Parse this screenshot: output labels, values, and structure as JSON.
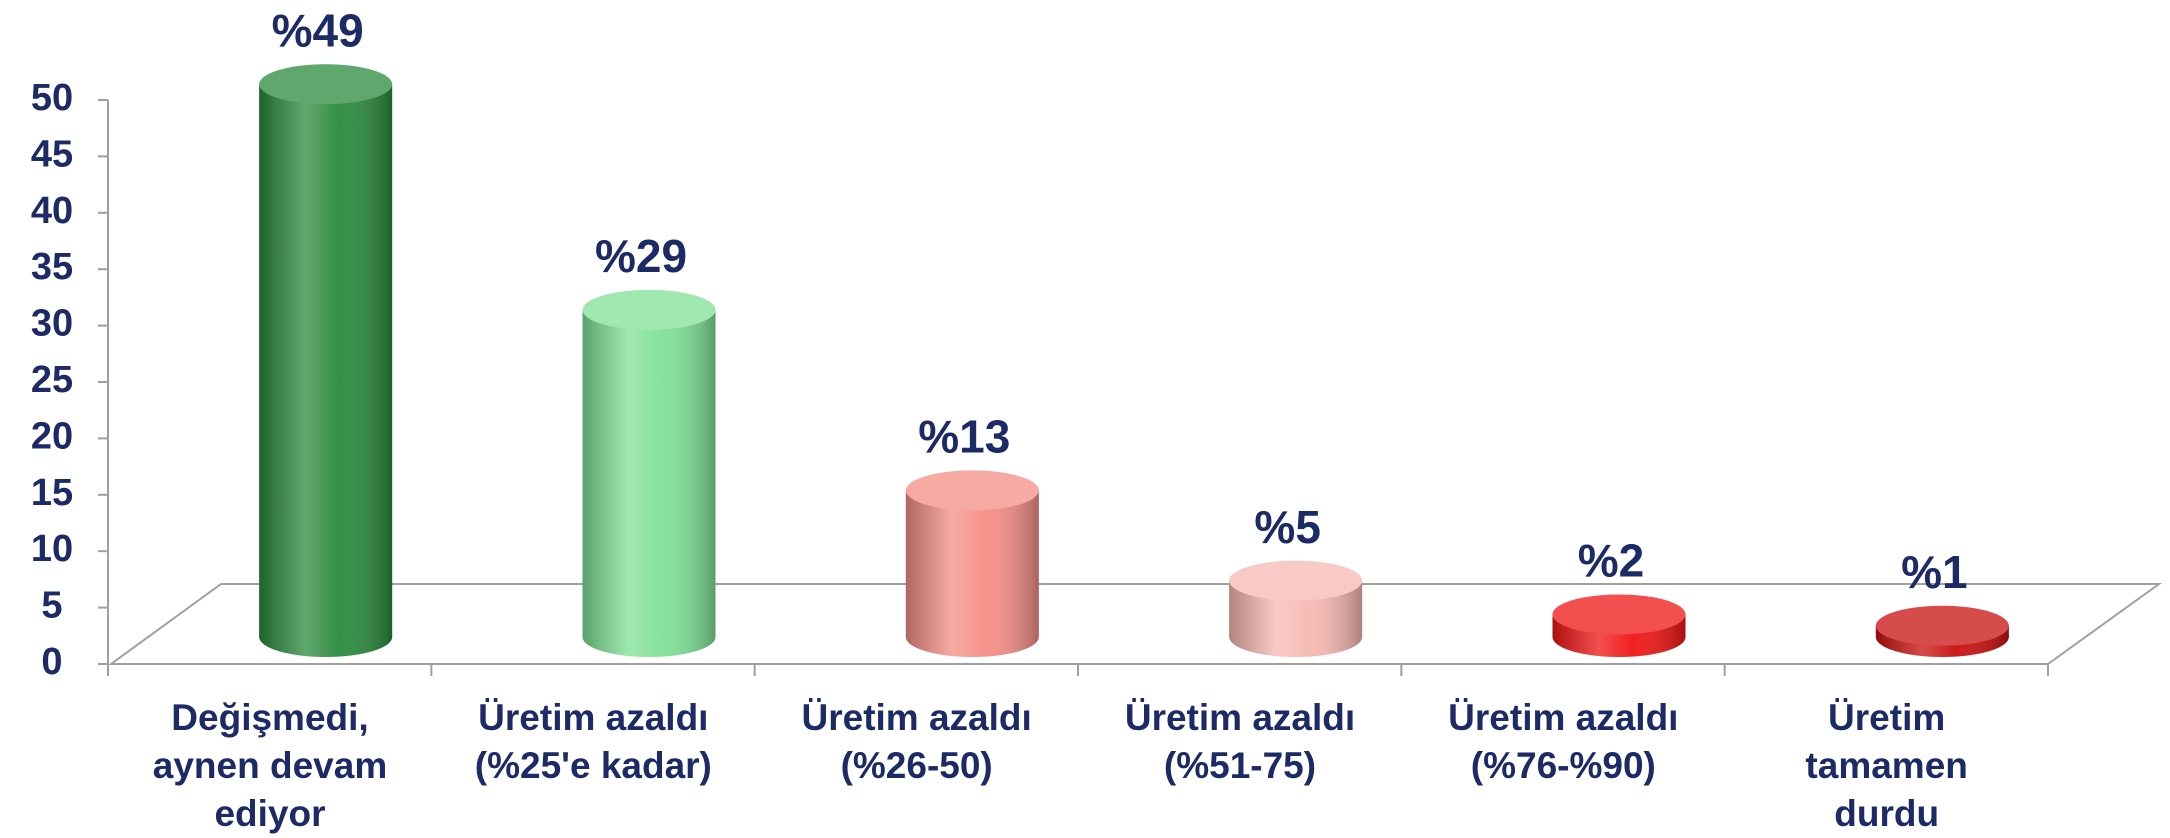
{
  "chart_data": {
    "type": "bar3d",
    "categories": [
      "Değişmedi,\naynen devam\nediyor",
      "Üretim azaldı\n(%25'e kadar)",
      "Üretim azaldı\n(%26-50)",
      "Üretim azaldı\n(%51-75)",
      "Üretim azaldı\n(%76-%90)",
      "Üretim\ntamamen\ndurdu"
    ],
    "values": [
      49,
      29,
      13,
      5,
      2,
      1
    ],
    "value_labels": [
      "%49",
      "%29",
      "%13",
      "%5",
      "%2",
      "%1"
    ],
    "colors": [
      "#2a8a3c",
      "#7fe096",
      "#f58e86",
      "#f6b8b2",
      "#f01414",
      "#c80f0f"
    ],
    "ylim": [
      0,
      50
    ],
    "yticks": [
      0,
      5,
      10,
      15,
      20,
      25,
      30,
      35,
      40,
      45,
      50
    ]
  }
}
